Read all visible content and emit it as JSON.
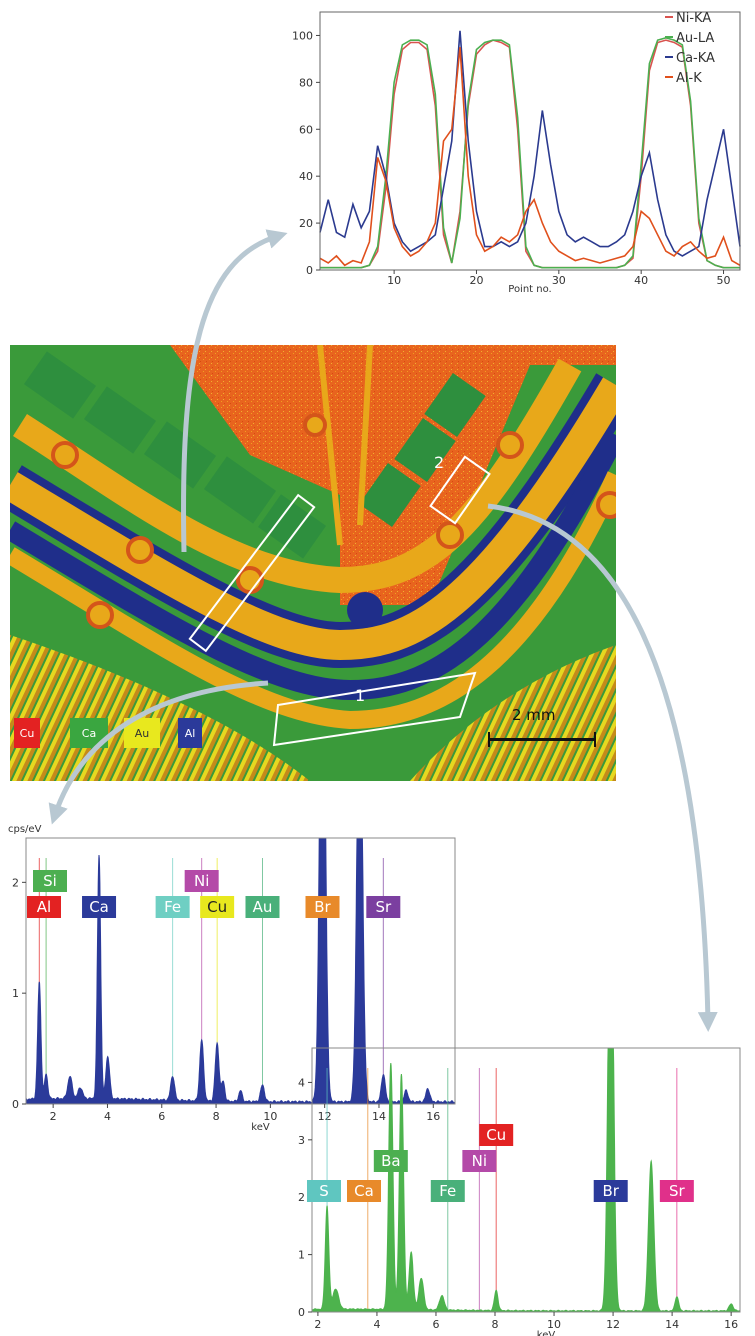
{
  "colors": {
    "Ni-KA": "#d9534f",
    "Au-LA": "#4caf50",
    "Ca-KA": "#2b3a8f",
    "Al-K": "#e0501c",
    "arrow": "#b8c8d2",
    "spectrum1": "#2b3a9a",
    "spectrum2": "#4db34d"
  },
  "map": {
    "region1_label": "1",
    "region2_label": "2",
    "scale_label": "2 mm",
    "legend": [
      {
        "label": "Cu",
        "color": "#e32222",
        "text_color": "#ffffff"
      },
      {
        "label": "Ca",
        "color": "#3aa640",
        "text_color": "#ffffff"
      },
      {
        "label": "Au",
        "color": "#e8e81e",
        "text_color": "#333333"
      },
      {
        "label": "Al",
        "color": "#2b3a9a",
        "text_color": "#ffffff"
      }
    ]
  },
  "chart_data": [
    {
      "type": "line",
      "title": "",
      "xlabel": "Point no.",
      "ylabel": "",
      "xlim": [
        1,
        52
      ],
      "ylim": [
        0,
        110
      ],
      "x_ticks": [
        10,
        20,
        30,
        40,
        50
      ],
      "y_ticks": [
        0,
        20,
        40,
        60,
        80,
        100
      ],
      "legend": "top-right",
      "series": [
        {
          "name": "Ni-KA",
          "color": "#d9534f",
          "x": [
            1,
            2,
            3,
            4,
            5,
            6,
            7,
            8,
            9,
            10,
            11,
            12,
            13,
            14,
            15,
            16,
            17,
            18,
            19,
            20,
            21,
            22,
            23,
            24,
            25,
            26,
            27,
            28,
            29,
            30,
            31,
            32,
            33,
            34,
            35,
            36,
            37,
            38,
            39,
            40,
            41,
            42,
            43,
            44,
            45,
            46,
            47,
            48,
            49,
            50,
            51,
            52
          ],
          "values": [
            1,
            1,
            1,
            1,
            1,
            1,
            2,
            8,
            35,
            75,
            94,
            97,
            97,
            94,
            70,
            15,
            3,
            25,
            70,
            92,
            96,
            98,
            97,
            95,
            60,
            8,
            2,
            1,
            1,
            1,
            1,
            1,
            1,
            1,
            1,
            1,
            1,
            2,
            5,
            40,
            85,
            97,
            98,
            97,
            95,
            70,
            20,
            4,
            2,
            1,
            1,
            1
          ]
        },
        {
          "name": "Au-LA",
          "color": "#4caf50",
          "x": [
            1,
            2,
            3,
            4,
            5,
            6,
            7,
            8,
            9,
            10,
            11,
            12,
            13,
            14,
            15,
            16,
            17,
            18,
            19,
            20,
            21,
            22,
            23,
            24,
            25,
            26,
            27,
            28,
            29,
            30,
            31,
            32,
            33,
            34,
            35,
            36,
            37,
            38,
            39,
            40,
            41,
            42,
            43,
            44,
            45,
            46,
            47,
            48,
            49,
            50,
            51,
            52
          ],
          "values": [
            1,
            1,
            1,
            1,
            1,
            1,
            2,
            10,
            40,
            80,
            96,
            98,
            98,
            96,
            75,
            18,
            3,
            22,
            72,
            94,
            97,
            98,
            98,
            96,
            65,
            10,
            2,
            1,
            1,
            1,
            1,
            1,
            1,
            1,
            1,
            1,
            1,
            2,
            6,
            45,
            88,
            98,
            99,
            98,
            96,
            72,
            22,
            4,
            2,
            1,
            1,
            1
          ]
        },
        {
          "name": "Ca-KA",
          "color": "#2b3a8f",
          "x": [
            1,
            2,
            3,
            4,
            5,
            6,
            7,
            8,
            9,
            10,
            11,
            12,
            13,
            14,
            15,
            16,
            17,
            18,
            19,
            20,
            21,
            22,
            23,
            24,
            25,
            26,
            27,
            28,
            29,
            30,
            31,
            32,
            33,
            34,
            35,
            36,
            37,
            38,
            39,
            40,
            41,
            42,
            43,
            44,
            45,
            46,
            47,
            48,
            49,
            50,
            51,
            52
          ],
          "values": [
            16,
            30,
            16,
            14,
            28,
            18,
            25,
            53,
            40,
            20,
            12,
            8,
            10,
            12,
            15,
            35,
            55,
            102,
            55,
            25,
            10,
            10,
            12,
            10,
            12,
            20,
            40,
            68,
            45,
            25,
            15,
            12,
            14,
            12,
            10,
            10,
            12,
            15,
            25,
            40,
            50,
            30,
            15,
            8,
            6,
            8,
            10,
            30,
            45,
            60,
            35,
            10
          ]
        },
        {
          "name": "Al-K",
          "color": "#e0501c",
          "x": [
            1,
            2,
            3,
            4,
            5,
            6,
            7,
            8,
            9,
            10,
            11,
            12,
            13,
            14,
            15,
            16,
            17,
            18,
            19,
            20,
            21,
            22,
            23,
            24,
            25,
            26,
            27,
            28,
            29,
            30,
            31,
            32,
            33,
            34,
            35,
            36,
            37,
            38,
            39,
            40,
            41,
            42,
            43,
            44,
            45,
            46,
            47,
            48,
            49,
            50,
            51,
            52
          ],
          "values": [
            5,
            3,
            6,
            2,
            4,
            3,
            12,
            48,
            38,
            18,
            10,
            6,
            8,
            12,
            20,
            55,
            60,
            95,
            40,
            15,
            8,
            10,
            14,
            12,
            15,
            25,
            30,
            20,
            12,
            8,
            6,
            4,
            5,
            4,
            3,
            4,
            5,
            6,
            10,
            25,
            22,
            15,
            8,
            6,
            10,
            12,
            8,
            5,
            6,
            14,
            4,
            2
          ]
        }
      ]
    },
    {
      "type": "area",
      "title": "",
      "xlabel": "keV",
      "ylabel": "cps/eV",
      "xlim": [
        1,
        16.8
      ],
      "ylim": [
        0,
        2.4
      ],
      "x_ticks": [
        2,
        4,
        6,
        8,
        10,
        12,
        14,
        16
      ],
      "y_ticks": [
        0,
        1,
        2
      ],
      "element_labels": [
        {
          "label": "Si",
          "energy": 1.74,
          "color": "#4caf50"
        },
        {
          "label": "Al",
          "energy": 1.49,
          "color": "#e32222"
        },
        {
          "label": "Ca",
          "energy": 3.69,
          "color": "#2b3a9a"
        },
        {
          "label": "Fe",
          "energy": 6.4,
          "color": "#6fcfc3"
        },
        {
          "label": "Ni",
          "energy": 7.47,
          "color": "#b44aa8"
        },
        {
          "label": "Cu",
          "energy": 8.04,
          "color": "#e8e81e"
        },
        {
          "label": "Au",
          "energy": 9.71,
          "color": "#49b07a"
        },
        {
          "label": "Br",
          "energy": 11.92,
          "color": "#e88a2a"
        },
        {
          "label": "Sr",
          "energy": 14.16,
          "color": "#7b3fa0"
        }
      ],
      "peaks": [
        {
          "energy": 1.49,
          "height": 1.05,
          "width": 0.06
        },
        {
          "energy": 1.74,
          "height": 0.22,
          "width": 0.06
        },
        {
          "energy": 2.62,
          "height": 0.2,
          "width": 0.08
        },
        {
          "energy": 3.0,
          "height": 0.1,
          "width": 0.08
        },
        {
          "energy": 3.69,
          "height": 2.2,
          "width": 0.06
        },
        {
          "energy": 4.01,
          "height": 0.38,
          "width": 0.07
        },
        {
          "energy": 6.4,
          "height": 0.22,
          "width": 0.07
        },
        {
          "energy": 7.47,
          "height": 0.55,
          "width": 0.07
        },
        {
          "energy": 8.04,
          "height": 0.52,
          "width": 0.07
        },
        {
          "energy": 8.26,
          "height": 0.18,
          "width": 0.06
        },
        {
          "energy": 8.9,
          "height": 0.1,
          "width": 0.06
        },
        {
          "energy": 9.71,
          "height": 0.15,
          "width": 0.07
        },
        {
          "energy": 11.92,
          "height": 5.0,
          "width": 0.1
        },
        {
          "energy": 13.29,
          "height": 4.0,
          "width": 0.1
        },
        {
          "energy": 14.16,
          "height": 0.25,
          "width": 0.07
        },
        {
          "energy": 15.0,
          "height": 0.1,
          "width": 0.07
        },
        {
          "energy": 15.8,
          "height": 0.12,
          "width": 0.07
        }
      ]
    },
    {
      "type": "area",
      "title": "",
      "xlabel": "keV",
      "ylabel": "",
      "xlim": [
        1.8,
        16.3
      ],
      "ylim": [
        0,
        4.6
      ],
      "x_ticks": [
        2,
        4,
        6,
        8,
        10,
        12,
        14,
        16
      ],
      "y_ticks": [
        0,
        1,
        2,
        3,
        4
      ],
      "element_labels": [
        {
          "label": "S",
          "energy": 2.31,
          "color": "#5fc6c0"
        },
        {
          "label": "Ca",
          "energy": 3.69,
          "color": "#e88a2a"
        },
        {
          "label": "Ba",
          "energy": 4.47,
          "color": "#4caf50"
        },
        {
          "label": "Fe",
          "energy": 6.4,
          "color": "#49b07a"
        },
        {
          "label": "Ni",
          "energy": 7.47,
          "color": "#b44aa8"
        },
        {
          "label": "Cu",
          "energy": 8.04,
          "color": "#e32222"
        },
        {
          "label": "Br",
          "energy": 11.92,
          "color": "#2b3a9a"
        },
        {
          "label": "Sr",
          "energy": 14.16,
          "color": "#e0308a"
        }
      ],
      "peaks": [
        {
          "energy": 2.31,
          "height": 1.8,
          "width": 0.06
        },
        {
          "energy": 2.6,
          "height": 0.35,
          "width": 0.1
        },
        {
          "energy": 4.47,
          "height": 4.3,
          "width": 0.07
        },
        {
          "energy": 4.83,
          "height": 4.1,
          "width": 0.07
        },
        {
          "energy": 5.16,
          "height": 1.0,
          "width": 0.07
        },
        {
          "energy": 5.5,
          "height": 0.55,
          "width": 0.08
        },
        {
          "energy": 6.2,
          "height": 0.25,
          "width": 0.08
        },
        {
          "energy": 8.04,
          "height": 0.35,
          "width": 0.06
        },
        {
          "energy": 11.92,
          "height": 8.0,
          "width": 0.09
        },
        {
          "energy": 13.29,
          "height": 2.6,
          "width": 0.09
        },
        {
          "energy": 14.16,
          "height": 0.25,
          "width": 0.06
        },
        {
          "energy": 16.0,
          "height": 0.12,
          "width": 0.07
        }
      ]
    }
  ]
}
